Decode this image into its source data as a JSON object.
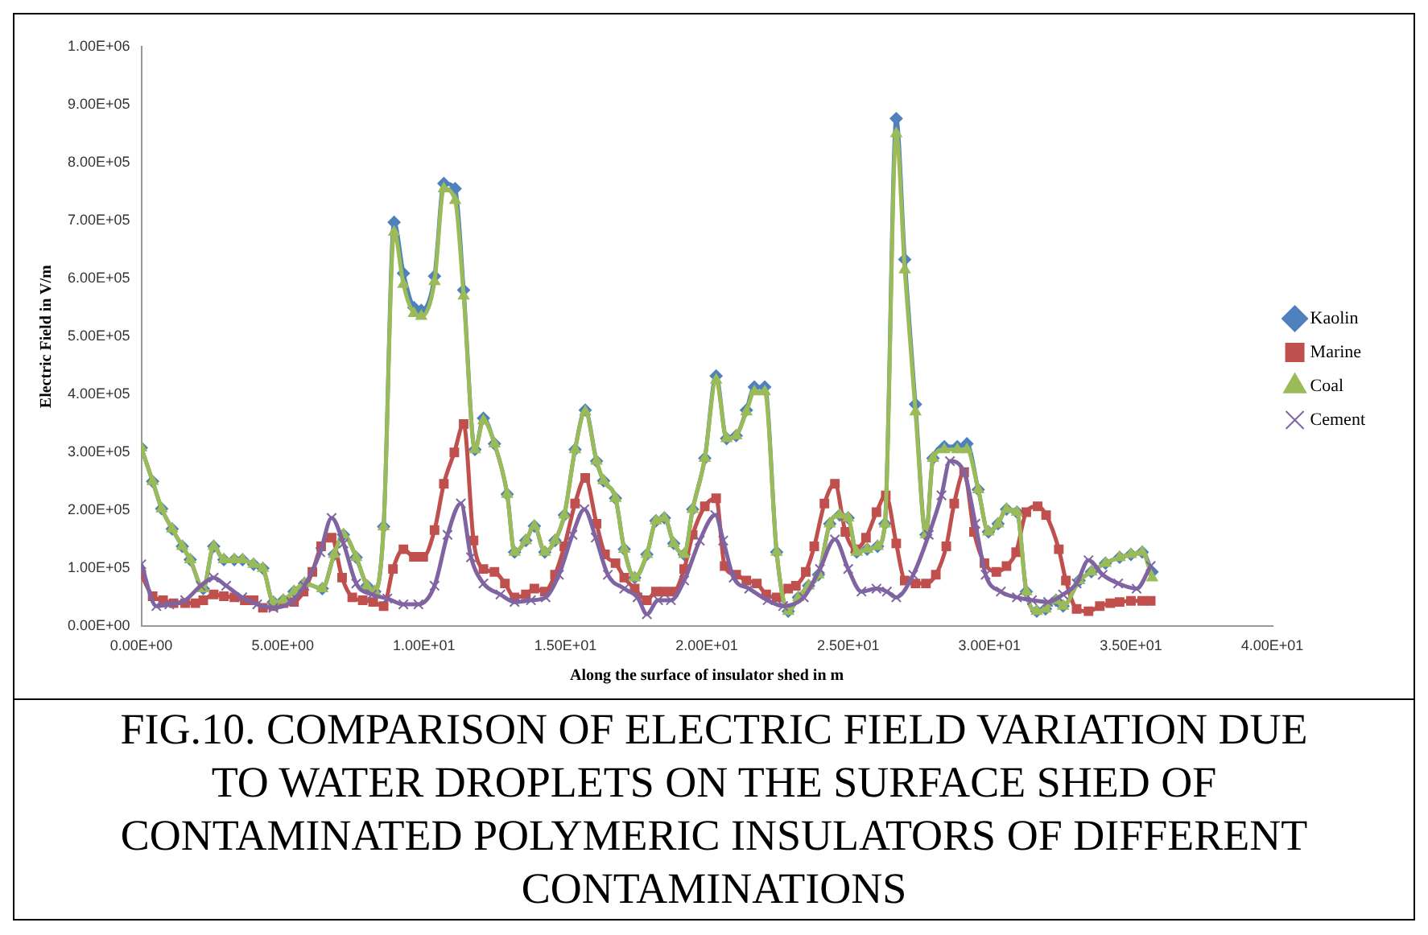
{
  "chart_data": {
    "type": "line",
    "title": "FIG.10. COMPARISON OF ELECTRIC FIELD VARIATION DUE TO WATER DROPLETS ON THE SURFACE SHED OF CONTAMINATED POLYMERIC INSULATORS OF DIFFERENT CONTAMINATIONS",
    "xlabel": "Along the surface of insulator shed in m",
    "ylabel": "Electric Field in V/m",
    "xlim": [
      0,
      40
    ],
    "xticks": [
      {
        "value": 0,
        "label": "0.00E+00"
      },
      {
        "value": 5,
        "label": "5.00E+00"
      },
      {
        "value": 10,
        "label": "1.00E+01"
      },
      {
        "value": 15,
        "label": "1.50E+01"
      },
      {
        "value": 20,
        "label": "2.00E+01"
      },
      {
        "value": 25,
        "label": "2.50E+01"
      },
      {
        "value": 30,
        "label": "3.00E+01"
      },
      {
        "value": 35,
        "label": "3.50E+01"
      },
      {
        "value": 40,
        "label": "4.00E+01"
      }
    ],
    "ylim": [
      0,
      1000000
    ],
    "yticks": [
      {
        "value": 0,
        "label": "0.00E+00"
      },
      {
        "value": 100000,
        "label": "1.00E+05"
      },
      {
        "value": 200000,
        "label": "2.00E+05"
      },
      {
        "value": 300000,
        "label": "3.00E+05"
      },
      {
        "value": 400000,
        "label": "4.00E+05"
      },
      {
        "value": 500000,
        "label": "5.00E+05"
      },
      {
        "value": 600000,
        "label": "6.00E+05"
      },
      {
        "value": 700000,
        "label": "7.00E+05"
      },
      {
        "value": 800000,
        "label": "8.00E+05"
      },
      {
        "value": 900000,
        "label": "9.00E+05"
      },
      {
        "value": 1000000,
        "label": "1.00E+06"
      }
    ],
    "grid": false,
    "legend": "right",
    "line_style": "solid",
    "series": [
      {
        "name": "Kaolin",
        "color": "#4f81bd",
        "marker": "diamond",
        "x": [
          0,
          0.4,
          0.72,
          1.09,
          1.45,
          1.73,
          2.19,
          2.56,
          2.92,
          3.29,
          3.58,
          3.97,
          4.3,
          4.67,
          5.02,
          5.4,
          5.77,
          6.4,
          6.82,
          7.15,
          7.6,
          7.98,
          8.26,
          8.57,
          8.94,
          9.27,
          9.64,
          9.9,
          10.37,
          10.7,
          11.1,
          11.4,
          11.8,
          12.1,
          12.49,
          12.94,
          13.2,
          13.6,
          13.9,
          14.27,
          14.63,
          14.96,
          15.34,
          15.7,
          16.1,
          16.35,
          16.77,
          17.08,
          17.45,
          17.88,
          18.2,
          18.5,
          18.83,
          19.2,
          19.5,
          19.93,
          20.33,
          20.7,
          21.04,
          21.4,
          21.68,
          22.05,
          22.47,
          22.88,
          23.24,
          23.6,
          23.95,
          24.35,
          24.7,
          25.0,
          25.3,
          25.67,
          26.04,
          26.3,
          26.7,
          27.0,
          27.38,
          27.75,
          28.0,
          28.4,
          28.86,
          29.2,
          29.6,
          29.96,
          30.3,
          30.6,
          30.97,
          31.3,
          31.67,
          31.98,
          32.35,
          32.6,
          33.17,
          33.6,
          34.1,
          34.6,
          35.0,
          35.4,
          35.75
        ],
        "values": [
          308000,
          250000,
          203000,
          168000,
          138000,
          115000,
          65000,
          138000,
          115000,
          115000,
          115000,
          107000,
          100000,
          42000,
          45000,
          60000,
          74000,
          65000,
          124000,
          158000,
          119000,
          70000,
          60000,
          172000,
          697000,
          609000,
          550000,
          545000,
          604000,
          764000,
          755000,
          580000,
          305000,
          359000,
          315000,
          228000,
          128000,
          148000,
          173000,
          128000,
          148000,
          192000,
          305000,
          373000,
          285000,
          251000,
          221000,
          133000,
          84000,
          124000,
          182000,
          187000,
          143000,
          124000,
          202000,
          290000,
          432000,
          324000,
          329000,
          373000,
          413000,
          413000,
          128000,
          26000,
          50000,
          70000,
          89000,
          177000,
          192000,
          187000,
          128000,
          133000,
          138000,
          177000,
          876000,
          633000,
          383000,
          158000,
          290000,
          310000,
          310000,
          315000,
          236000,
          163000,
          177000,
          202000,
          197000,
          60000,
          26000,
          30000,
          45000,
          35000,
          79000,
          94000,
          109000,
          119000,
          124000,
          128000,
          94000
        ]
      },
      {
        "name": "Marine",
        "color": "#c0504d",
        "marker": "square",
        "x": [
          0,
          0.4,
          0.77,
          1.14,
          1.55,
          1.91,
          2.19,
          2.56,
          2.92,
          3.29,
          3.66,
          3.97,
          4.3,
          4.67,
          5.03,
          5.4,
          5.74,
          6.05,
          6.36,
          6.73,
          7.1,
          7.46,
          7.83,
          8.2,
          8.57,
          8.9,
          9.27,
          9.64,
          9.97,
          10.37,
          10.7,
          11.07,
          11.4,
          11.75,
          12.1,
          12.49,
          12.86,
          13.2,
          13.6,
          13.9,
          14.27,
          14.63,
          14.96,
          15.34,
          15.7,
          16.1,
          16.4,
          16.77,
          17.08,
          17.45,
          17.88,
          18.2,
          18.5,
          18.83,
          19.2,
          19.5,
          19.93,
          20.33,
          20.63,
          21.04,
          21.4,
          21.77,
          22.1,
          22.47,
          22.88,
          23.15,
          23.5,
          23.8,
          24.16,
          24.53,
          24.9,
          25.26,
          25.63,
          26.0,
          26.33,
          26.7,
          27.0,
          27.38,
          27.75,
          28.1,
          28.47,
          28.75,
          29.1,
          29.45,
          29.82,
          30.24,
          30.6,
          30.94,
          31.3,
          31.7,
          32.0,
          32.45,
          32.7,
          33.08,
          33.5,
          33.9,
          34.27,
          34.6,
          35.0,
          35.4,
          35.7
        ],
        "values": [
          89000,
          52000,
          45000,
          40000,
          40000,
          40000,
          45000,
          55000,
          52000,
          50000,
          45000,
          45000,
          32000,
          35000,
          40000,
          42000,
          60000,
          94000,
          138000,
          153000,
          84000,
          50000,
          45000,
          42000,
          35000,
          99000,
          133000,
          120000,
          120000,
          166000,
          246000,
          300000,
          349000,
          148000,
          99000,
          94000,
          74000,
          50000,
          55000,
          65000,
          60000,
          89000,
          138000,
          212000,
          256000,
          177000,
          124000,
          109000,
          84000,
          65000,
          45000,
          60000,
          60000,
          60000,
          99000,
          158000,
          207000,
          221000,
          104000,
          89000,
          79000,
          74000,
          55000,
          50000,
          65000,
          70000,
          94000,
          138000,
          212000,
          246000,
          163000,
          133000,
          153000,
          197000,
          226000,
          143000,
          79000,
          74000,
          74000,
          89000,
          138000,
          212000,
          266000,
          163000,
          109000,
          94000,
          104000,
          128000,
          197000,
          207000,
          192000,
          133000,
          79000,
          30000,
          26000,
          35000,
          40000,
          42000,
          44000,
          44000,
          44000
        ]
      },
      {
        "name": "Coal",
        "color": "#9bbb59",
        "marker": "triangle",
        "x": [
          0,
          0.4,
          0.72,
          1.09,
          1.45,
          1.73,
          2.19,
          2.56,
          2.92,
          3.29,
          3.58,
          3.97,
          4.3,
          4.67,
          5.02,
          5.4,
          5.77,
          6.4,
          6.82,
          7.15,
          7.6,
          7.98,
          8.26,
          8.57,
          8.94,
          9.27,
          9.64,
          9.9,
          10.37,
          10.7,
          11.1,
          11.4,
          11.8,
          12.1,
          12.49,
          12.94,
          13.2,
          13.6,
          13.9,
          14.27,
          14.63,
          14.96,
          15.34,
          15.7,
          16.1,
          16.35,
          16.77,
          17.08,
          17.45,
          17.88,
          18.2,
          18.5,
          18.83,
          19.2,
          19.5,
          19.93,
          20.33,
          20.7,
          21.04,
          21.4,
          21.68,
          22.05,
          22.47,
          22.88,
          23.24,
          23.6,
          23.95,
          24.35,
          24.7,
          25.0,
          25.3,
          25.67,
          26.04,
          26.3,
          26.7,
          27.0,
          27.38,
          27.75,
          28.0,
          28.4,
          28.86,
          29.2,
          29.6,
          29.96,
          30.3,
          30.6,
          30.97,
          31.3,
          31.67,
          31.98,
          32.35,
          32.6,
          33.17,
          33.6,
          34.1,
          34.6,
          35.0,
          35.4,
          35.75
        ],
        "values": [
          308000,
          250000,
          203000,
          168000,
          138000,
          115000,
          65000,
          138000,
          115000,
          115000,
          115000,
          107000,
          100000,
          42000,
          45000,
          60000,
          74000,
          65000,
          124000,
          158000,
          119000,
          70000,
          60000,
          172000,
          680000,
          590000,
          540000,
          535000,
          595000,
          755000,
          735000,
          570000,
          305000,
          355000,
          315000,
          228000,
          128000,
          148000,
          173000,
          128000,
          148000,
          192000,
          305000,
          370000,
          285000,
          251000,
          221000,
          133000,
          84000,
          124000,
          182000,
          187000,
          143000,
          124000,
          202000,
          290000,
          425000,
          324000,
          329000,
          370000,
          405000,
          405000,
          128000,
          26000,
          50000,
          70000,
          89000,
          177000,
          192000,
          187000,
          128000,
          133000,
          138000,
          177000,
          850000,
          615000,
          370000,
          158000,
          290000,
          305000,
          305000,
          305000,
          236000,
          163000,
          177000,
          202000,
          197000,
          60000,
          26000,
          30000,
          45000,
          35000,
          79000,
          94000,
          109000,
          119000,
          124000,
          128000,
          84000
        ]
      },
      {
        "name": "Cement",
        "color": "#8064a2",
        "marker": "cross",
        "x": [
          0,
          0.53,
          0.99,
          1.55,
          2.1,
          2.56,
          3.0,
          3.57,
          4.1,
          4.67,
          5.3,
          5.77,
          6.33,
          6.73,
          7.15,
          7.6,
          8.16,
          8.7,
          9.27,
          9.8,
          10.37,
          10.83,
          11.3,
          11.66,
          12.1,
          12.7,
          13.2,
          13.78,
          14.3,
          14.77,
          15.25,
          15.67,
          16.07,
          16.5,
          17.08,
          17.55,
          17.88,
          18.28,
          18.73,
          19.2,
          19.75,
          20.3,
          20.58,
          20.95,
          21.5,
          22.15,
          22.7,
          23.43,
          24.0,
          24.53,
          25.0,
          25.47,
          26.0,
          26.37,
          26.7,
          27.3,
          27.85,
          28.3,
          28.6,
          29.1,
          29.5,
          29.86,
          30.4,
          30.97,
          31.5,
          32.07,
          32.6,
          33.08,
          33.5,
          34.0,
          34.55,
          35.2,
          35.7
        ],
        "values": [
          107000,
          35000,
          38000,
          45000,
          70000,
          84000,
          70000,
          50000,
          38000,
          32000,
          42000,
          70000,
          128000,
          187000,
          143000,
          74000,
          55000,
          48000,
          38000,
          38000,
          70000,
          158000,
          212000,
          119000,
          74000,
          55000,
          42000,
          45000,
          50000,
          89000,
          158000,
          202000,
          153000,
          89000,
          65000,
          50000,
          21000,
          45000,
          45000,
          79000,
          148000,
          192000,
          148000,
          84000,
          65000,
          45000,
          35000,
          50000,
          99000,
          150000,
          99000,
          60000,
          65000,
          60000,
          50000,
          89000,
          158000,
          226000,
          285000,
          266000,
          177000,
          89000,
          60000,
          50000,
          45000,
          42000,
          55000,
          74000,
          114000,
          89000,
          74000,
          65000,
          104000
        ]
      }
    ]
  }
}
